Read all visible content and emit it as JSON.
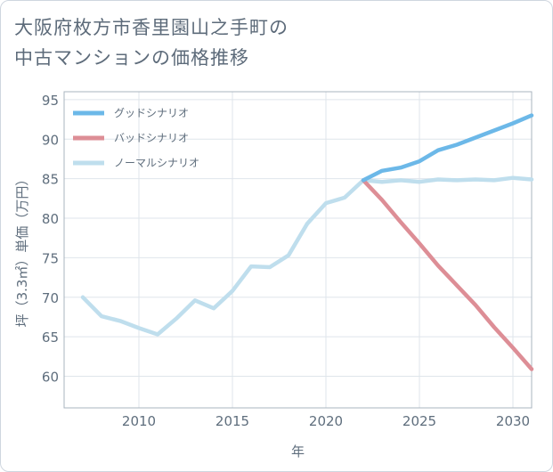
{
  "title": {
    "line1": "大阪府枚方市香里園山之手町の",
    "line2": "中古マンションの価格推移"
  },
  "chart_data": {
    "type": "line",
    "xlabel": "年",
    "ylabel": "坪（3.3㎡）単価（万円）",
    "xlim": [
      2006,
      2031
    ],
    "ylim": [
      56,
      96
    ],
    "x_ticks": [
      2010,
      2015,
      2020,
      2025,
      2030
    ],
    "y_ticks": [
      60,
      65,
      70,
      75,
      80,
      85,
      90,
      95
    ],
    "grid": true,
    "legend_position": "top-left",
    "series": [
      {
        "name": "グッドシナリオ",
        "color": "#6cb8e8",
        "x": [
          2022,
          2023,
          2024,
          2025,
          2026,
          2027,
          2028,
          2029,
          2030,
          2031
        ],
        "values": [
          84.8,
          86.0,
          86.4,
          87.2,
          88.6,
          89.3,
          90.2,
          91.1,
          92.0,
          93.0
        ]
      },
      {
        "name": "バッドシナリオ",
        "color": "#dd8e96",
        "x": [
          2022,
          2023,
          2024,
          2025,
          2026,
          2027,
          2028,
          2029,
          2030,
          2031
        ],
        "values": [
          84.8,
          82.3,
          79.5,
          76.8,
          74.0,
          71.5,
          69.0,
          66.2,
          63.6,
          60.9
        ]
      },
      {
        "name": "ノーマルシナリオ",
        "color": "#bfdeed",
        "x": [
          2007,
          2008,
          2009,
          2010,
          2011,
          2012,
          2013,
          2014,
          2015,
          2016,
          2017,
          2018,
          2019,
          2020,
          2021,
          2022,
          2023,
          2024,
          2025,
          2026,
          2027,
          2028,
          2029,
          2030,
          2031
        ],
        "values": [
          70.0,
          67.6,
          67.0,
          66.1,
          65.3,
          67.3,
          69.6,
          68.6,
          70.8,
          73.9,
          73.8,
          75.3,
          79.3,
          81.9,
          82.6,
          84.8,
          84.6,
          84.8,
          84.6,
          84.9,
          84.8,
          84.9,
          84.8,
          85.1,
          84.9
        ]
      }
    ]
  }
}
